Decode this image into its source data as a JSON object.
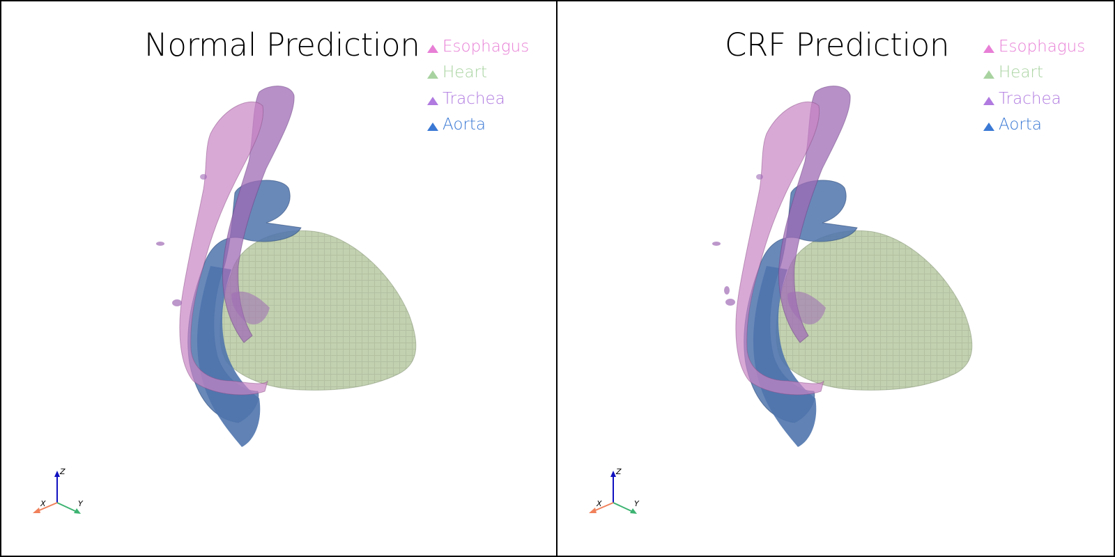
{
  "viewports": [
    {
      "title": "Normal Prediction",
      "legend": [
        {
          "label": "Esophagus",
          "color": "#e87fd6"
        },
        {
          "label": "Heart",
          "color": "#a8d3a0"
        },
        {
          "label": "Trachea",
          "color": "#b07ae0"
        },
        {
          "label": "Aorta",
          "color": "#3a78d4"
        }
      ],
      "axes": {
        "x": "X",
        "y": "Y",
        "z": "Z"
      }
    },
    {
      "title": "CRF Prediction",
      "legend": [
        {
          "label": "Esophagus",
          "color": "#e87fd6"
        },
        {
          "label": "Heart",
          "color": "#a8d3a0"
        },
        {
          "label": "Trachea",
          "color": "#b07ae0"
        },
        {
          "label": "Aorta",
          "color": "#3a78d4"
        }
      ],
      "axes": {
        "x": "X",
        "y": "Y",
        "z": "Z"
      }
    }
  ],
  "mesh_colors": {
    "esophagus": "#c985c4",
    "heart": "#b7c9a2",
    "trachea": "#9f6bb5",
    "aorta": "#4f74ad"
  }
}
